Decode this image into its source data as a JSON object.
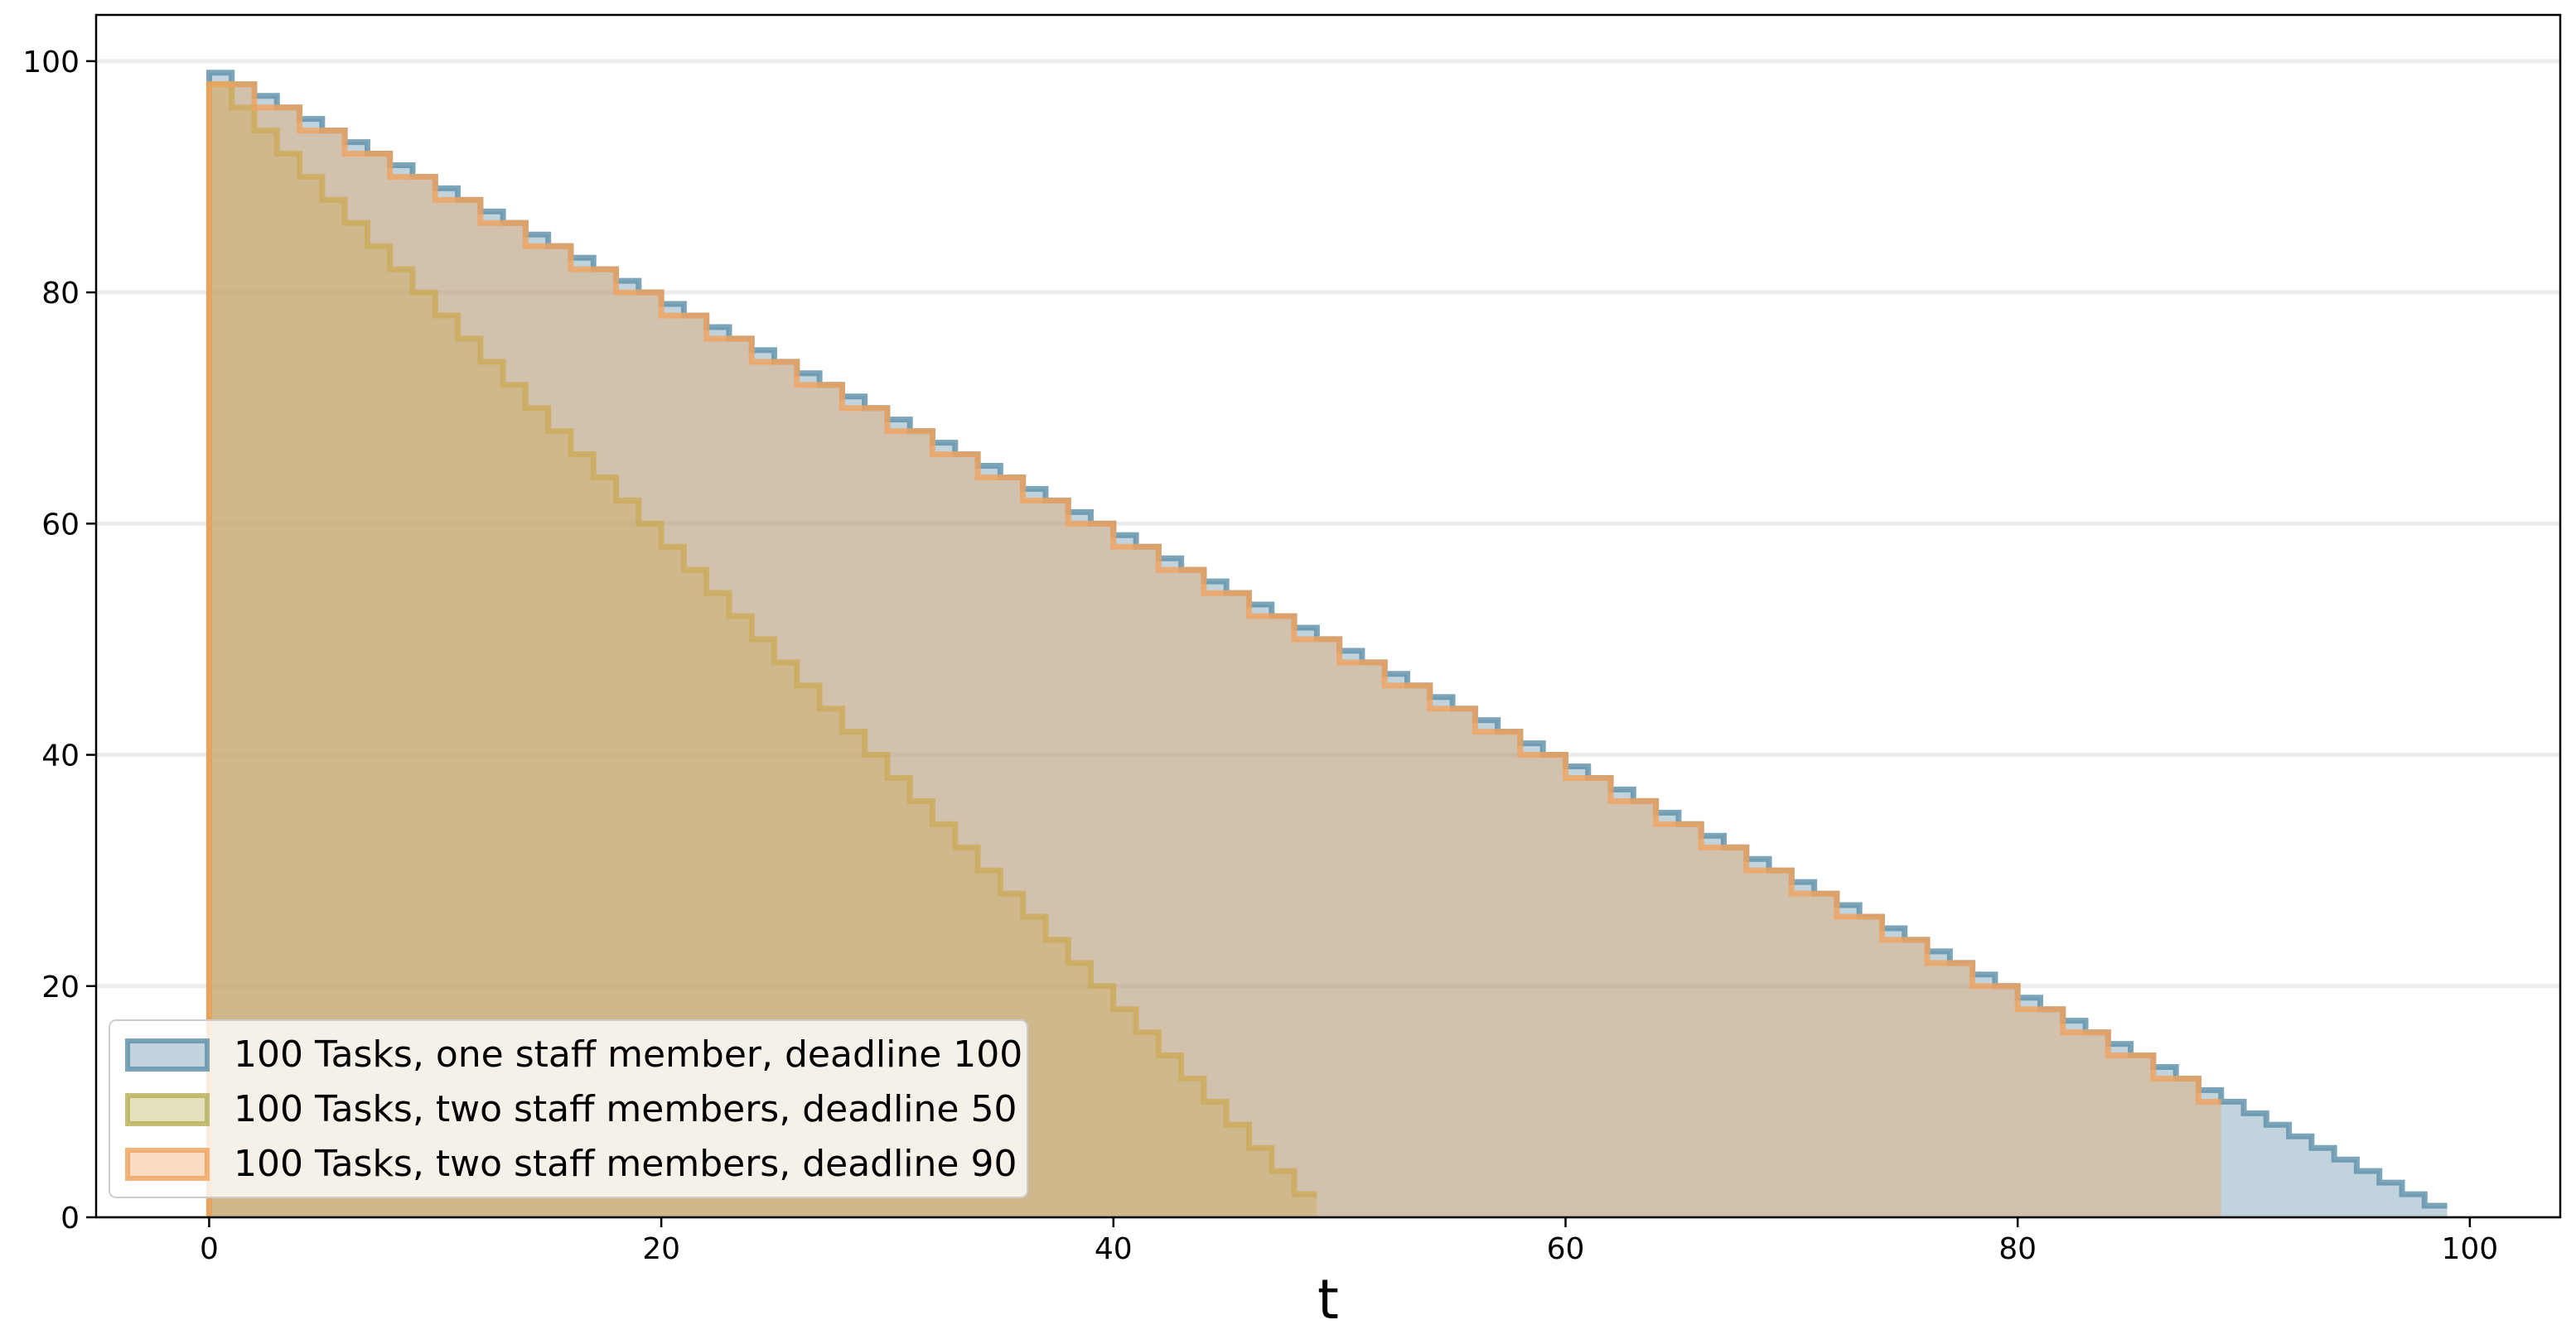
{
  "chart_data": {
    "type": "area",
    "title": "",
    "xlabel": "t",
    "ylabel": "",
    "xlim": [
      -5,
      104
    ],
    "ylim": [
      0,
      104
    ],
    "xticks": [
      0,
      20,
      40,
      60,
      80,
      100
    ],
    "yticks": [
      0,
      20,
      40,
      60,
      80,
      100
    ],
    "grid": "horizontal",
    "legend_position": "lower-left",
    "step": "post",
    "series": [
      {
        "name": "100 Tasks, one staff member, deadline 100",
        "color": "#5b8fa8",
        "start": 0,
        "end": 99,
        "initial": 99,
        "step_every": 1,
        "decrement": 1
      },
      {
        "name": "100 Tasks, two staff members, deadline 50",
        "color": "#b5ae55",
        "start": 0,
        "end": 49,
        "initial": 98,
        "step_every": 1,
        "decrement": 2
      },
      {
        "name": "100 Tasks, two staff members, deadline 90",
        "color": "#f0a35e",
        "start": 0,
        "end": 89,
        "initial": 98,
        "step_every": 2,
        "decrement": 2
      }
    ]
  }
}
